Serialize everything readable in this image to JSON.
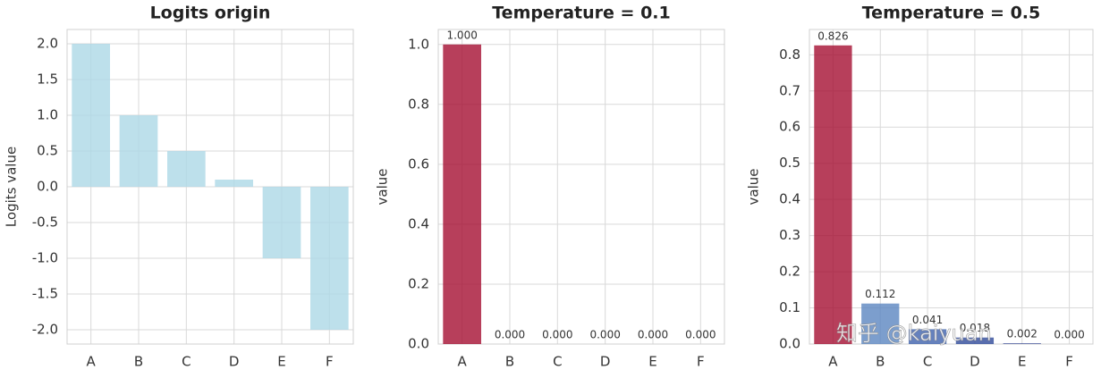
{
  "chart_data": [
    {
      "type": "bar",
      "title": "Logits origin",
      "ylabel": "Logits value",
      "categories": [
        "A",
        "B",
        "C",
        "D",
        "E",
        "F"
      ],
      "values": [
        2.0,
        1.0,
        0.5,
        0.1,
        -1.0,
        -2.0
      ],
      "colors": [
        "#add8e6",
        "#add8e6",
        "#add8e6",
        "#add8e6",
        "#add8e6",
        "#add8e6"
      ],
      "ylim": [
        -2.2,
        2.2
      ],
      "yticks": [
        {
          "value": -2,
          "label": "-2.0"
        },
        {
          "value": -1.5,
          "label": "-1.5"
        },
        {
          "value": -1,
          "label": "-1.0"
        },
        {
          "value": -0.5,
          "label": "-0.5"
        },
        {
          "value": 0,
          "label": "0.0"
        },
        {
          "value": 0.5,
          "label": "0.5"
        },
        {
          "value": 1,
          "label": "1.0"
        },
        {
          "value": 1.5,
          "label": "1.5"
        },
        {
          "value": 2,
          "label": "2.0"
        }
      ],
      "grid": true
    },
    {
      "type": "bar",
      "title": "Temperature = 0.1",
      "ylabel": "value",
      "categories": [
        "A",
        "B",
        "C",
        "D",
        "E",
        "F"
      ],
      "values": [
        1.0,
        0,
        0,
        0,
        0,
        0
      ],
      "value_labels": [
        "1.000",
        "0.000",
        "0.000",
        "0.000",
        "0.000",
        "0.000"
      ],
      "colors": [
        "#a50f32",
        "#3b5aa6",
        "#3b5aa6",
        "#3b5aa6",
        "#3b5aa6",
        "#3b5aa6"
      ],
      "ylim": [
        0,
        1.05
      ],
      "yticks": [
        {
          "value": 0,
          "label": "0.0"
        },
        {
          "value": 0.2,
          "label": "0.2"
        },
        {
          "value": 0.4,
          "label": "0.4"
        },
        {
          "value": 0.6,
          "label": "0.6"
        },
        {
          "value": 0.8,
          "label": "0.8"
        },
        {
          "value": 1,
          "label": "1.0"
        }
      ],
      "grid": true
    },
    {
      "type": "bar",
      "title": "Temperature = 0.5",
      "ylabel": "value",
      "categories": [
        "A",
        "B",
        "C",
        "D",
        "E",
        "F"
      ],
      "values": [
        0.826,
        0.112,
        0.041,
        0.018,
        0.002,
        0.0
      ],
      "value_labels": [
        "0.826",
        "0.112",
        "0.041",
        "0.018",
        "0.002",
        "0.000"
      ],
      "colors": [
        "#a50f32",
        "#5b86c0",
        "#3f62ad",
        "#2f4a9a",
        "#2a3f8f",
        "#26388a"
      ],
      "ylim": [
        0,
        0.87
      ],
      "yticks": [
        {
          "value": 0,
          "label": "0.0"
        },
        {
          "value": 0.1,
          "label": "0.1"
        },
        {
          "value": 0.2,
          "label": "0.2"
        },
        {
          "value": 0.3,
          "label": "0.3"
        },
        {
          "value": 0.4,
          "label": "0.4"
        },
        {
          "value": 0.5,
          "label": "0.5"
        },
        {
          "value": 0.6,
          "label": "0.6"
        },
        {
          "value": 0.7,
          "label": "0.7"
        },
        {
          "value": 0.8,
          "label": "0.8"
        }
      ],
      "grid": true
    }
  ],
  "watermark": "知乎 @kaiyuan"
}
